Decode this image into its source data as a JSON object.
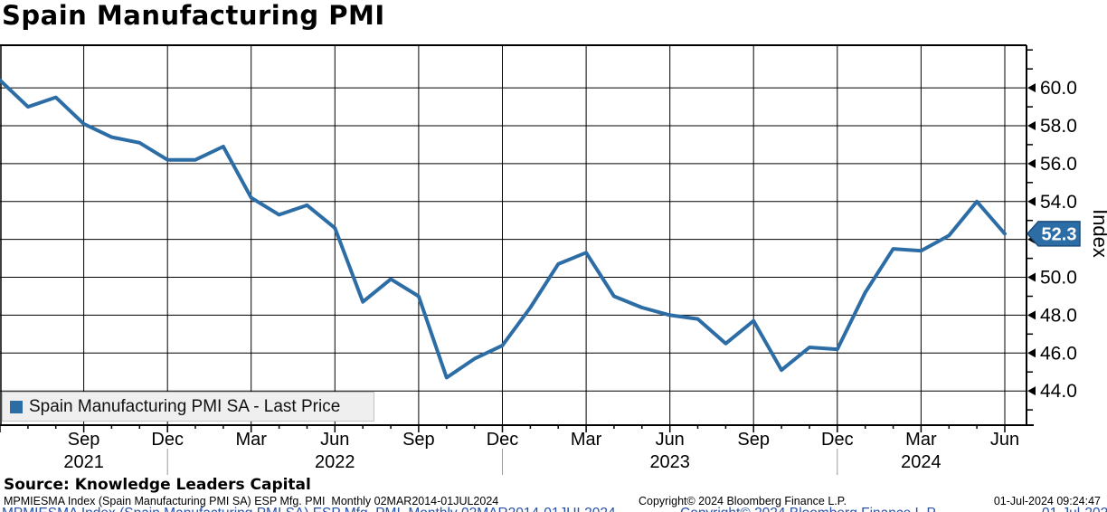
{
  "title": "Spain Manufacturing PMI",
  "legend": {
    "label": "Spain Manufacturing PMI SA - Last Price"
  },
  "source_line": "Source: Knowledge Leaders Capital",
  "footer": {
    "left": "MPMIESMA Index (Spain Manufacturing PMI SA) ESP Mfg. PMI  Monthly 02MAR2014-01JUL2024",
    "center": "Copyright© 2024 Bloomberg Finance L.P.",
    "right": "01-Jul-2024 09:24:47"
  },
  "colors": {
    "line": "#2d6da6",
    "badge_fill": "#2d6da6",
    "badge_border": "#1d4e7e",
    "badge_text": "#ffffff",
    "grid": "#000000",
    "year_divider": "#999999",
    "legend_bg": "#efefef"
  },
  "chart_data": {
    "type": "line",
    "title": "Spain Manufacturing PMI",
    "ylabel": "Index",
    "ylim": [
      42.2,
      62.3
    ],
    "grid": true,
    "legend_position": "bottom-left",
    "last_value": 52.3,
    "y_ticks": [
      44,
      46,
      48,
      50,
      52,
      54,
      56,
      58,
      60
    ],
    "series": [
      {
        "name": "Spain Manufacturing PMI SA - Last Price",
        "x": [
          "2021-06",
          "2021-07",
          "2021-08",
          "2021-09",
          "2021-10",
          "2021-11",
          "2021-12",
          "2022-01",
          "2022-02",
          "2022-03",
          "2022-04",
          "2022-05",
          "2022-06",
          "2022-07",
          "2022-08",
          "2022-09",
          "2022-10",
          "2022-11",
          "2022-12",
          "2023-01",
          "2023-02",
          "2023-03",
          "2023-04",
          "2023-05",
          "2023-06",
          "2023-07",
          "2023-08",
          "2023-09",
          "2023-10",
          "2023-11",
          "2023-12",
          "2024-01",
          "2024-02",
          "2024-03",
          "2024-04",
          "2024-05",
          "2024-06"
        ],
        "values": [
          60.4,
          59.0,
          59.5,
          58.1,
          57.4,
          57.1,
          56.2,
          56.2,
          56.9,
          54.2,
          53.3,
          53.8,
          52.6,
          48.7,
          49.9,
          49.0,
          44.7,
          45.7,
          46.4,
          48.4,
          50.7,
          51.3,
          49.0,
          48.4,
          48.0,
          47.8,
          46.5,
          47.7,
          45.1,
          46.3,
          46.2,
          49.2,
          51.5,
          51.4,
          52.2,
          54.0,
          52.3
        ]
      }
    ],
    "x_ticks": [
      {
        "x": "2021-09",
        "label": "Sep",
        "year": "2021"
      },
      {
        "x": "2021-12",
        "label": "Dec",
        "divider": true
      },
      {
        "x": "2022-03",
        "label": "Mar"
      },
      {
        "x": "2022-06",
        "label": "Jun",
        "year": "2022"
      },
      {
        "x": "2022-09",
        "label": "Sep"
      },
      {
        "x": "2022-12",
        "label": "Dec",
        "divider": true
      },
      {
        "x": "2023-03",
        "label": "Mar"
      },
      {
        "x": "2023-06",
        "label": "Jun",
        "year": "2023"
      },
      {
        "x": "2023-09",
        "label": "Sep"
      },
      {
        "x": "2023-12",
        "label": "Dec",
        "divider": true
      },
      {
        "x": "2024-03",
        "label": "Mar",
        "year": "2024"
      },
      {
        "x": "2024-06",
        "label": "Jun"
      }
    ]
  }
}
